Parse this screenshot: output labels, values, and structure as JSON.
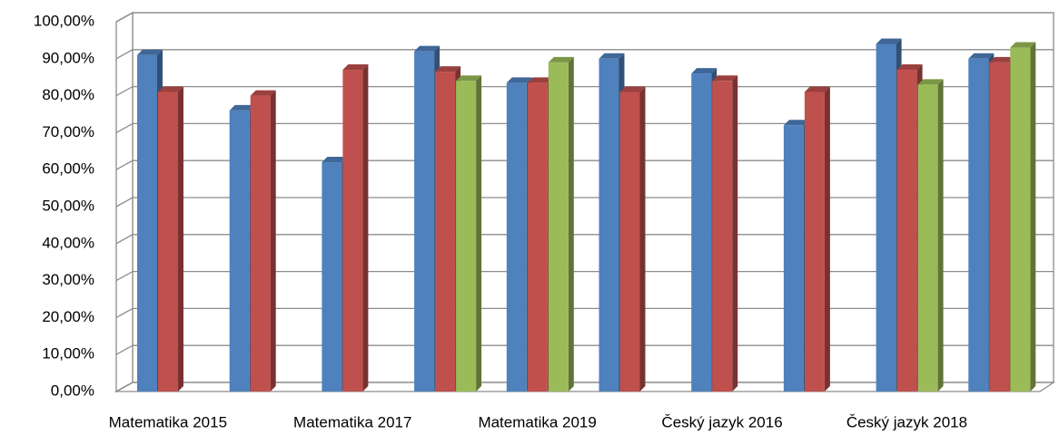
{
  "chart_data": {
    "type": "bar3d",
    "categories": [
      "Matematika 2015",
      null,
      "Matematika 2017",
      null,
      "Matematika 2019",
      null,
      "Český jazyk 2016",
      null,
      "Český jazyk 2018",
      null
    ],
    "series": [
      {
        "color": "#4f81bd",
        "values": [
          91,
          76,
          62,
          92,
          83.5,
          90,
          86,
          72,
          94,
          90
        ]
      },
      {
        "color": "#c0504d",
        "values": [
          81,
          80,
          87,
          86.5,
          83.5,
          81,
          84,
          81,
          87,
          89
        ]
      },
      {
        "color": "#9bbb59",
        "values": [
          null,
          null,
          null,
          84,
          89,
          null,
          null,
          null,
          83,
          93
        ]
      }
    ],
    "ylim": [
      0,
      100
    ],
    "yticks": [
      {
        "value": 0,
        "label": "0,00%"
      },
      {
        "value": 10,
        "label": "10,00%"
      },
      {
        "value": 20,
        "label": "20,00%"
      },
      {
        "value": 30,
        "label": "30,00%"
      },
      {
        "value": 40,
        "label": "40,00%"
      },
      {
        "value": 50,
        "label": "50,00%"
      },
      {
        "value": 60,
        "label": "60,00%"
      },
      {
        "value": 70,
        "label": "70,00%"
      },
      {
        "value": 80,
        "label": "80,00%"
      },
      {
        "value": 90,
        "label": "90,00%"
      },
      {
        "value": 100,
        "label": "100,00%"
      }
    ],
    "grid": true
  }
}
